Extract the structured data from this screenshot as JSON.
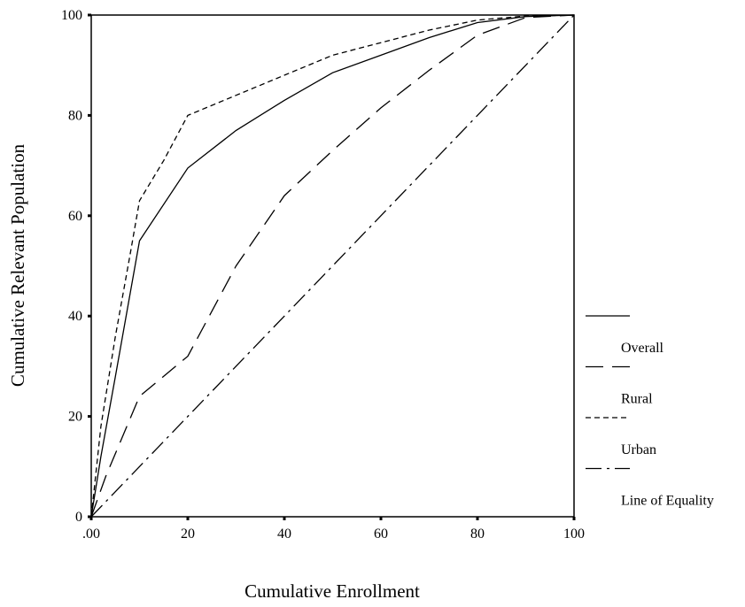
{
  "chart_data": {
    "type": "line",
    "title": "",
    "xlabel": "Cumulative Enrollment",
    "ylabel": "Cumulative Relevant Population",
    "xlim": [
      0,
      100
    ],
    "ylim": [
      0,
      100
    ],
    "x_tick_labels": [
      ".00",
      "20",
      "40",
      "60",
      "80",
      "100"
    ],
    "y_tick_labels": [
      "0",
      "20",
      "40",
      "60",
      "80",
      "100"
    ],
    "x_ticks": [
      0,
      20,
      40,
      60,
      80,
      100
    ],
    "y_ticks": [
      0,
      20,
      40,
      60,
      80,
      100
    ],
    "grid": false,
    "legend_position": "right",
    "series": [
      {
        "name": "Overall",
        "dash": "none",
        "points": [
          [
            0,
            0
          ],
          [
            2,
            12
          ],
          [
            5,
            28
          ],
          [
            10,
            55
          ],
          [
            20,
            69.5
          ],
          [
            30,
            77
          ],
          [
            40,
            83
          ],
          [
            50,
            88.5
          ],
          [
            60,
            92
          ],
          [
            70,
            95.5
          ],
          [
            80,
            98.5
          ],
          [
            90,
            99.7
          ],
          [
            100,
            100
          ]
        ]
      },
      {
        "name": "Rural",
        "dash": "long",
        "points": [
          [
            0,
            0
          ],
          [
            3,
            8
          ],
          [
            10,
            24
          ],
          [
            20,
            32
          ],
          [
            30,
            50
          ],
          [
            40,
            64
          ],
          [
            50,
            73
          ],
          [
            60,
            81.5
          ],
          [
            70,
            89
          ],
          [
            80,
            96
          ],
          [
            90,
            99.5
          ],
          [
            100,
            100
          ]
        ]
      },
      {
        "name": "Urban",
        "dash": "short",
        "points": [
          [
            0,
            0
          ],
          [
            2,
            18
          ],
          [
            5,
            36
          ],
          [
            8,
            52
          ],
          [
            10,
            63
          ],
          [
            15,
            71
          ],
          [
            20,
            80
          ],
          [
            30,
            84
          ],
          [
            40,
            88
          ],
          [
            50,
            92
          ],
          [
            60,
            94.5
          ],
          [
            70,
            97
          ],
          [
            80,
            99
          ],
          [
            90,
            99.8
          ],
          [
            100,
            100
          ]
        ]
      },
      {
        "name": "Line of Equality",
        "dash": "dashdot",
        "points": [
          [
            0,
            0
          ],
          [
            100,
            100
          ]
        ]
      }
    ]
  }
}
